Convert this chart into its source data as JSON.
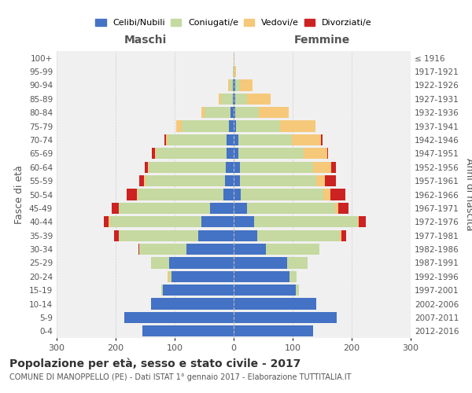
{
  "age_groups": [
    "0-4",
    "5-9",
    "10-14",
    "15-19",
    "20-24",
    "25-29",
    "30-34",
    "35-39",
    "40-44",
    "45-49",
    "50-54",
    "55-59",
    "60-64",
    "65-69",
    "70-74",
    "75-79",
    "80-84",
    "85-89",
    "90-94",
    "95-99",
    "100+"
  ],
  "birth_years": [
    "2012-2016",
    "2007-2011",
    "2002-2006",
    "1997-2001",
    "1992-1996",
    "1987-1991",
    "1982-1986",
    "1977-1981",
    "1972-1976",
    "1967-1971",
    "1962-1966",
    "1957-1961",
    "1952-1956",
    "1947-1951",
    "1942-1946",
    "1937-1941",
    "1932-1936",
    "1927-1931",
    "1922-1926",
    "1917-1921",
    "≤ 1916"
  ],
  "colors": {
    "celibe": "#4472c4",
    "coniugato": "#c5d9a0",
    "vedovo": "#f5c87a",
    "divorziato": "#cc2222"
  },
  "maschi": {
    "celibe": [
      155,
      185,
      140,
      120,
      105,
      110,
      80,
      60,
      55,
      40,
      18,
      15,
      14,
      12,
      12,
      8,
      5,
      2,
      1,
      0,
      0
    ],
    "coniugato": [
      0,
      0,
      0,
      3,
      5,
      30,
      80,
      135,
      155,
      155,
      145,
      135,
      130,
      120,
      100,
      80,
      45,
      20,
      6,
      1,
      0
    ],
    "vedovo": [
      0,
      0,
      0,
      0,
      2,
      0,
      0,
      0,
      2,
      0,
      1,
      2,
      2,
      2,
      3,
      10,
      5,
      3,
      3,
      0,
      0
    ],
    "divorziato": [
      0,
      0,
      0,
      0,
      0,
      0,
      2,
      8,
      8,
      12,
      18,
      8,
      5,
      5,
      2,
      0,
      0,
      0,
      0,
      0,
      0
    ]
  },
  "femmine": {
    "nubile": [
      135,
      175,
      140,
      105,
      95,
      90,
      55,
      40,
      35,
      22,
      12,
      10,
      10,
      8,
      8,
      4,
      3,
      2,
      2,
      0,
      0
    ],
    "coniugata": [
      0,
      0,
      0,
      5,
      12,
      35,
      90,
      140,
      175,
      150,
      140,
      130,
      125,
      110,
      90,
      75,
      40,
      20,
      8,
      1,
      0
    ],
    "vedova": [
      0,
      0,
      0,
      0,
      0,
      0,
      0,
      2,
      2,
      5,
      12,
      15,
      30,
      40,
      50,
      60,
      50,
      40,
      22,
      3,
      1
    ],
    "divorziata": [
      0,
      0,
      0,
      0,
      0,
      0,
      0,
      8,
      12,
      18,
      25,
      18,
      8,
      2,
      2,
      0,
      0,
      0,
      0,
      0,
      0
    ]
  },
  "xlim": 300,
  "title": "Popolazione per età, sesso e stato civile - 2017",
  "subtitle": "COMUNE DI MANOPPELLO (PE) - Dati ISTAT 1° gennaio 2017 - Elaborazione TUTTITALIA.IT",
  "ylabel_left": "Fasce di età",
  "ylabel_right": "Anni di nascita",
  "xlabel_left": "Maschi",
  "xlabel_right": "Femmine",
  "background_color": "#ffffff",
  "plot_bg": "#f0f0f0",
  "grid_color": "#cccccc"
}
